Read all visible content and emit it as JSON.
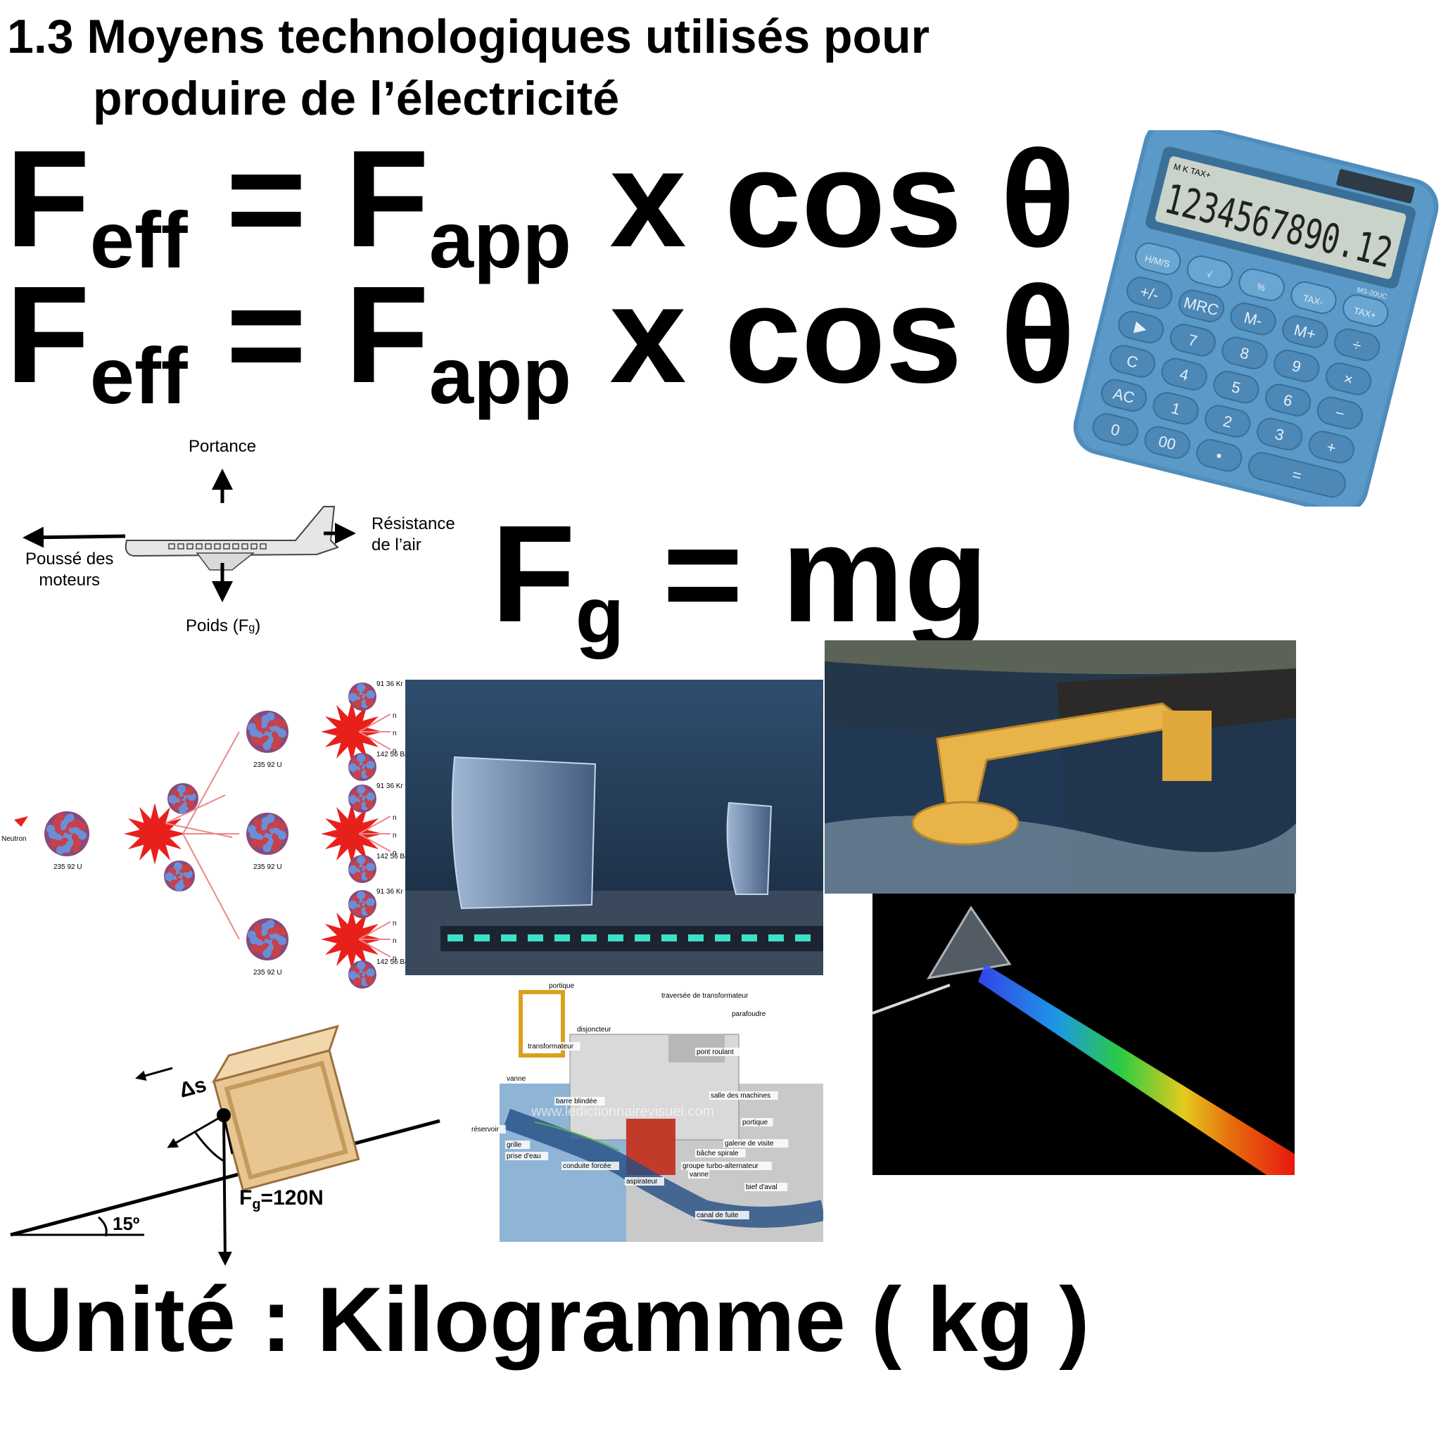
{
  "title": {
    "line1": "1.3 Moyens technologiques utilisés pour",
    "line2": "produire de l’électricité"
  },
  "formulas": {
    "effective_force_1": {
      "main": "F",
      "sub": "eff",
      "eq": "=",
      "main2": "F",
      "sub2": "app",
      "rest": "x cos θ"
    },
    "effective_force_2": {
      "main": "F",
      "sub": "eff",
      "eq": "=",
      "main2": "F",
      "sub2": "app",
      "rest": "x cos θ"
    },
    "gravity": {
      "main": "F",
      "sub": "g",
      "rest": "= mg"
    }
  },
  "calculator": {
    "display": "1234567890.12",
    "display_flags": "M K TAX+",
    "model": "MS-20UC",
    "keys_row1": [
      "H/M/S",
      "√",
      "%",
      "TAX-",
      "TAX+"
    ],
    "keys_row2": [
      "+/-",
      "MRC",
      "M-",
      "M+",
      "÷"
    ],
    "keys_row3": [
      "▶",
      "7",
      "8",
      "9",
      "×"
    ],
    "keys_row4": [
      "C",
      "4",
      "5",
      "6",
      "−"
    ],
    "keys_row5": [
      "AC",
      "1",
      "2",
      "3",
      "+"
    ],
    "keys_row6": [
      "0",
      "00",
      "•",
      "="
    ]
  },
  "airplane_diagram": {
    "lift": "Portance",
    "drag_line1": "Résistance",
    "drag_line2": "de l’air",
    "thrust_line1": "Poussé des",
    "thrust_line2": "moteurs",
    "weight": "Poids (F",
    "weight_sub": "g",
    "weight_end": ")"
  },
  "fission_diagram": {
    "neutron": "Neutron",
    "uranium": "235 92 U",
    "krypton": "91 36 Kr",
    "barium": "142 56 Ba",
    "n": "n"
  },
  "incline_diagram": {
    "displacement": "Δs",
    "force_main": "F",
    "force_sub": "g",
    "force_value": "=120N",
    "angle": "15º"
  },
  "hydro_diagram": {
    "labels": [
      "portique",
      "traversée de transformateur",
      "parafoudre",
      "disjoncteur",
      "transformateur",
      "pont roulant",
      "vanne",
      "salle des machines",
      "barre blindée",
      "portique",
      "réservoir",
      "galerie de visite",
      "grille",
      "bâche spirale",
      "prise d'eau",
      "conduite forcée",
      "groupe turbo-alternateur",
      "aspirateur",
      "vanne",
      "bief d'aval",
      "canal de fuite"
    ],
    "watermark": "www.ledictionnairevisuel.com"
  },
  "unit": "Unité : Kilogramme ( kg )",
  "colors": {
    "calculator_body": "#5b9ac8",
    "water_dark": "#1d3148",
    "wave_device": "#e8b44a",
    "prism_background": "#000000"
  }
}
